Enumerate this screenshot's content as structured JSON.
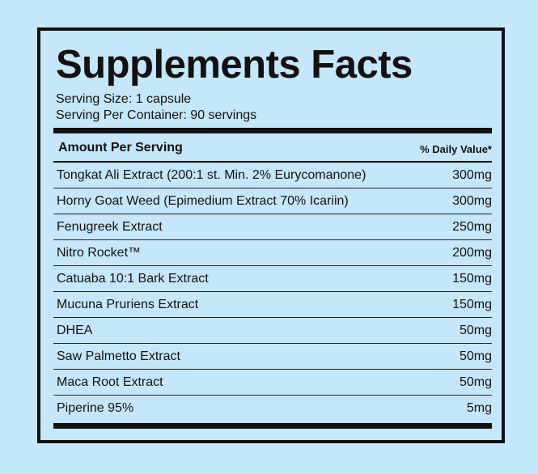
{
  "label": {
    "title": "Supplements Facts",
    "serving_size": "Serving Size: 1 capsule",
    "servings_per_container": "Serving Per Container: 90 servings",
    "header_amount": "Amount Per Serving",
    "header_daily_value": "% Daily Value*",
    "ingredients": [
      {
        "name": "Tongkat Ali Extract (200:1 st. Min. 2% Eurycomanone)",
        "amount": "300mg"
      },
      {
        "name": "Horny Goat Weed (Epimedium Extract 70% Icariin)",
        "amount": "300mg"
      },
      {
        "name": "Fenugreek Extract",
        "amount": "250mg"
      },
      {
        "name": "Nitro Rocket™",
        "amount": "200mg"
      },
      {
        "name": "Catuaba 10:1 Bark Extract",
        "amount": "150mg"
      },
      {
        "name": "Mucuna Pruriens Extract",
        "amount": "150mg"
      },
      {
        "name": "DHEA",
        "amount": "50mg"
      },
      {
        "name": "Saw Palmetto Extract",
        "amount": "50mg"
      },
      {
        "name": "Maca Root Extract",
        "amount": "50mg"
      },
      {
        "name": "Piperine 95%",
        "amount": "5mg"
      }
    ]
  },
  "colors": {
    "background": "#c5e7fb",
    "ink": "#111111"
  }
}
